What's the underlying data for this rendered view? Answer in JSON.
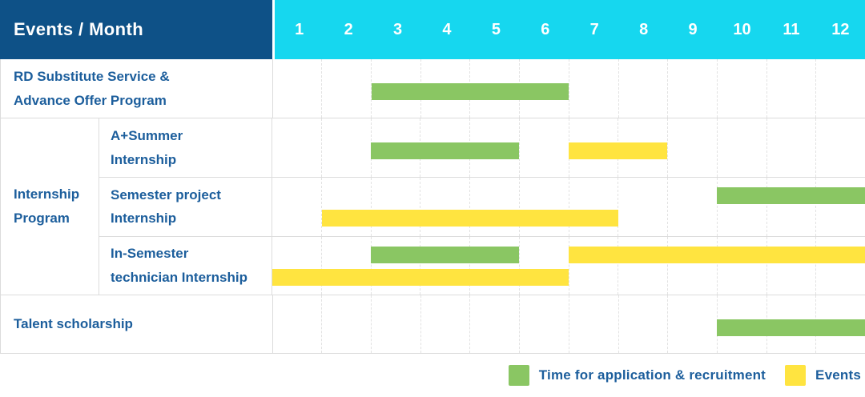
{
  "colors": {
    "header-blue": "#0E5187",
    "header-cyan": "#16D7EF",
    "text-blue": "#1C5E9C",
    "bar-green": "#8AC663",
    "bar-yellow": "#FFE440",
    "grid-line": "#DCDCDC",
    "grid-dash": "#E2E2E2"
  },
  "chart_data": {
    "type": "gantt",
    "title": "Events / Month",
    "months_labels": [
      "1",
      "2",
      "3",
      "4",
      "5",
      "6",
      "7",
      "8",
      "9",
      "10",
      "11",
      "12"
    ],
    "x_range": [
      1,
      12
    ],
    "group_label": "Internship Program",
    "legend": [
      {
        "key": "application",
        "label": "Time for application & recruitment",
        "color": "#8AC663"
      },
      {
        "key": "events",
        "label": "Events",
        "color": "#FFE440"
      }
    ],
    "rows": [
      {
        "group": "",
        "label": "RD Substitute Service &\nAdvance Offer Program",
        "bars": [
          {
            "type": "application",
            "start_month": 3,
            "end_month": 6,
            "lane": "center"
          }
        ]
      },
      {
        "group": "Internship Program",
        "label": "A+Summer\nInternship",
        "bars": [
          {
            "type": "application",
            "start_month": 3,
            "end_month": 5,
            "lane": "center"
          },
          {
            "type": "events",
            "start_month": 7,
            "end_month": 8,
            "lane": "center"
          }
        ]
      },
      {
        "group": "Internship Program",
        "label": "Semester project\nInternship",
        "bars": [
          {
            "type": "application",
            "start_month": 10,
            "end_month": 12,
            "lane": "top"
          },
          {
            "type": "events",
            "start_month": 2,
            "end_month": 7,
            "lane": "bottom"
          }
        ]
      },
      {
        "group": "Internship Program",
        "label": "In-Semester\ntechnician Internship",
        "bars": [
          {
            "type": "application",
            "start_month": 3,
            "end_month": 5,
            "lane": "top"
          },
          {
            "type": "events",
            "start_month": 7,
            "end_month": 12,
            "lane": "top"
          },
          {
            "type": "events",
            "start_month": 1,
            "end_month": 6,
            "lane": "bottom"
          }
        ]
      },
      {
        "group": "",
        "label": "Talent scholarship",
        "bars": [
          {
            "type": "application",
            "start_month": 10,
            "end_month": 12,
            "lane": "center"
          }
        ]
      }
    ]
  }
}
